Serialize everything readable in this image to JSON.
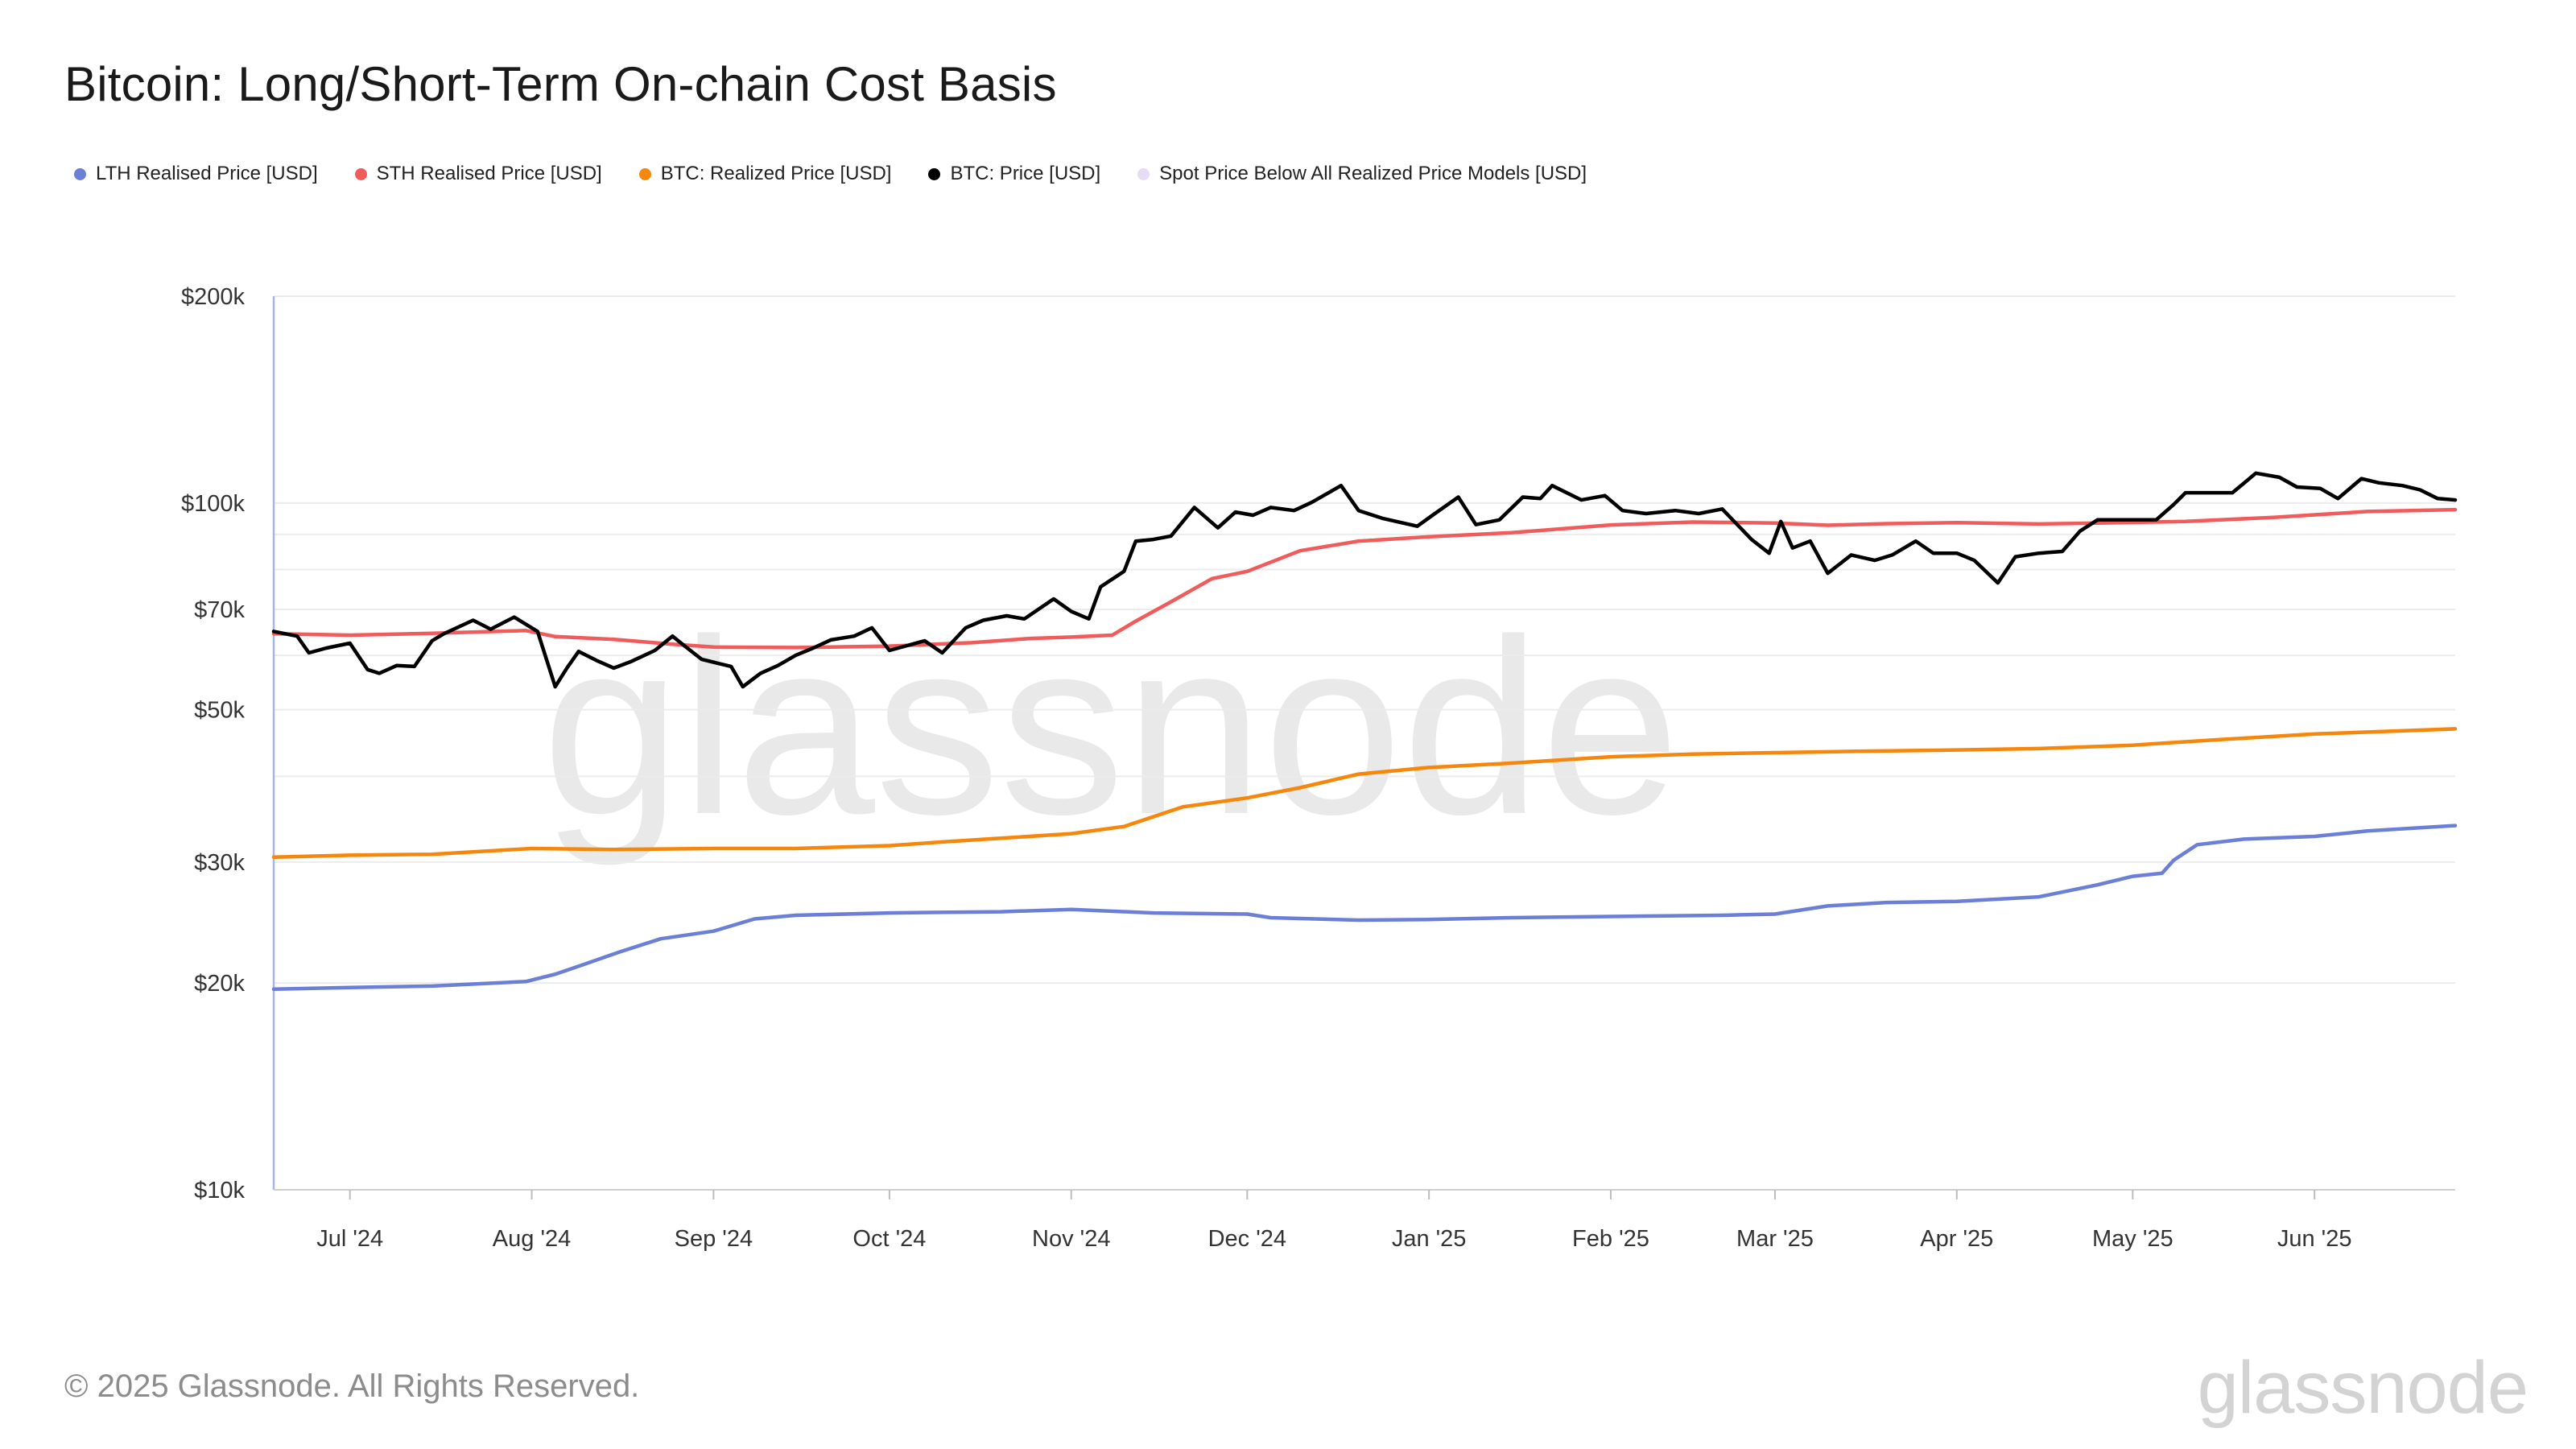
{
  "title": "Bitcoin: Long/Short-Term On-chain Cost Basis",
  "footer": "© 2025 Glassnode. All Rights Reserved.",
  "brand": "glassnode",
  "watermark": "glassnode",
  "legend": [
    {
      "label": "LTH Realised Price [USD]",
      "color": "#6b7fd7"
    },
    {
      "label": "STH Realised Price [USD]",
      "color": "#f05b5b"
    },
    {
      "label": "BTC: Realized Price [USD]",
      "color": "#f5870c"
    },
    {
      "label": "BTC: Price [USD]",
      "color": "#000000"
    },
    {
      "label": "Spot Price Below All Realized Price Models [USD]",
      "color": "#e6dcf5"
    }
  ],
  "chart_data": {
    "type": "line",
    "title": "Bitcoin: Long/Short-Term On-chain Cost Basis",
    "yscale": "log",
    "ylim": [
      10000,
      200000
    ],
    "xlim": [
      "2024-06-18",
      "2025-06-25"
    ],
    "y_ticks": [
      {
        "value": 10000,
        "label": "$10k"
      },
      {
        "value": 20000,
        "label": "$20k"
      },
      {
        "value": 30000,
        "label": "$30k"
      },
      {
        "value": 50000,
        "label": "$50k"
      },
      {
        "value": 70000,
        "label": "$70k"
      },
      {
        "value": 100000,
        "label": "$100k"
      },
      {
        "value": 200000,
        "label": "$200k"
      }
    ],
    "x_ticks": [
      {
        "date": "2024-07-01",
        "label": "Jul '24"
      },
      {
        "date": "2024-08-01",
        "label": "Aug '24"
      },
      {
        "date": "2024-09-01",
        "label": "Sep '24"
      },
      {
        "date": "2024-10-01",
        "label": "Oct '24"
      },
      {
        "date": "2024-11-01",
        "label": "Nov '24"
      },
      {
        "date": "2024-12-01",
        "label": "Dec '24"
      },
      {
        "date": "2025-01-01",
        "label": "Jan '25"
      },
      {
        "date": "2025-02-01",
        "label": "Feb '25"
      },
      {
        "date": "2025-03-01",
        "label": "Mar '25"
      },
      {
        "date": "2025-04-01",
        "label": "Apr '25"
      },
      {
        "date": "2025-05-01",
        "label": "May '25"
      },
      {
        "date": "2025-06-01",
        "label": "Jun '25"
      }
    ],
    "grid": true,
    "legend_position": "top-left",
    "series": [
      {
        "name": "LTH Realised Price [USD]",
        "color": "#6b7fd7",
        "points": [
          [
            "2024-06-18",
            19600
          ],
          [
            "2024-07-01",
            19700
          ],
          [
            "2024-07-15",
            19800
          ],
          [
            "2024-07-31",
            20100
          ],
          [
            "2024-08-05",
            20600
          ],
          [
            "2024-08-10",
            21300
          ],
          [
            "2024-08-16",
            22200
          ],
          [
            "2024-08-23",
            23200
          ],
          [
            "2024-09-01",
            23800
          ],
          [
            "2024-09-08",
            24800
          ],
          [
            "2024-09-15",
            25100
          ],
          [
            "2024-10-01",
            25300
          ],
          [
            "2024-10-20",
            25400
          ],
          [
            "2024-11-01",
            25600
          ],
          [
            "2024-11-15",
            25300
          ],
          [
            "2024-12-01",
            25200
          ],
          [
            "2024-12-05",
            24900
          ],
          [
            "2024-12-20",
            24700
          ],
          [
            "2025-01-01",
            24750
          ],
          [
            "2025-01-15",
            24900
          ],
          [
            "2025-02-01",
            25000
          ],
          [
            "2025-02-20",
            25100
          ],
          [
            "2025-03-01",
            25200
          ],
          [
            "2025-03-10",
            25900
          ],
          [
            "2025-03-20",
            26200
          ],
          [
            "2025-04-01",
            26300
          ],
          [
            "2025-04-15",
            26700
          ],
          [
            "2025-04-25",
            27800
          ],
          [
            "2025-05-01",
            28600
          ],
          [
            "2025-05-06",
            28900
          ],
          [
            "2025-05-08",
            30200
          ],
          [
            "2025-05-12",
            31800
          ],
          [
            "2025-05-20",
            32400
          ],
          [
            "2025-06-01",
            32700
          ],
          [
            "2025-06-10",
            33300
          ],
          [
            "2025-06-25",
            33900
          ]
        ]
      },
      {
        "name": "STH Realised Price [USD]",
        "color": "#f05b5b",
        "points": [
          [
            "2024-06-18",
            64500
          ],
          [
            "2024-07-01",
            64200
          ],
          [
            "2024-07-15",
            64600
          ],
          [
            "2024-07-31",
            65200
          ],
          [
            "2024-08-05",
            63900
          ],
          [
            "2024-08-15",
            63300
          ],
          [
            "2024-08-25",
            62300
          ],
          [
            "2024-09-01",
            61700
          ],
          [
            "2024-09-15",
            61600
          ],
          [
            "2024-10-01",
            61900
          ],
          [
            "2024-10-15",
            62600
          ],
          [
            "2024-10-25",
            63500
          ],
          [
            "2024-11-01",
            63800
          ],
          [
            "2024-11-08",
            64200
          ],
          [
            "2024-11-12",
            67300
          ],
          [
            "2024-11-18",
            71800
          ],
          [
            "2024-11-25",
            77600
          ],
          [
            "2024-12-01",
            79500
          ],
          [
            "2024-12-10",
            85200
          ],
          [
            "2024-12-20",
            88000
          ],
          [
            "2025-01-01",
            89300
          ],
          [
            "2025-01-15",
            90500
          ],
          [
            "2025-02-01",
            92900
          ],
          [
            "2025-02-15",
            93800
          ],
          [
            "2025-03-01",
            93500
          ],
          [
            "2025-03-10",
            92800
          ],
          [
            "2025-03-20",
            93300
          ],
          [
            "2025-04-01",
            93600
          ],
          [
            "2025-04-15",
            93200
          ],
          [
            "2025-04-25",
            93500
          ],
          [
            "2025-05-10",
            94000
          ],
          [
            "2025-05-25",
            95300
          ],
          [
            "2025-06-10",
            97200
          ],
          [
            "2025-06-25",
            97800
          ]
        ]
      },
      {
        "name": "BTC: Realized Price [USD]",
        "color": "#f5870c",
        "points": [
          [
            "2024-06-18",
            30500
          ],
          [
            "2024-07-01",
            30700
          ],
          [
            "2024-07-15",
            30800
          ],
          [
            "2024-08-01",
            31400
          ],
          [
            "2024-08-15",
            31300
          ],
          [
            "2024-09-01",
            31400
          ],
          [
            "2024-09-15",
            31400
          ],
          [
            "2024-10-01",
            31700
          ],
          [
            "2024-10-10",
            32100
          ],
          [
            "2024-10-20",
            32500
          ],
          [
            "2024-11-01",
            33000
          ],
          [
            "2024-11-10",
            33800
          ],
          [
            "2024-11-20",
            36100
          ],
          [
            "2024-12-01",
            37200
          ],
          [
            "2024-12-10",
            38500
          ],
          [
            "2024-12-20",
            40300
          ],
          [
            "2025-01-01",
            41200
          ],
          [
            "2025-01-15",
            41800
          ],
          [
            "2025-02-01",
            42700
          ],
          [
            "2025-02-15",
            43100
          ],
          [
            "2025-03-01",
            43300
          ],
          [
            "2025-03-15",
            43500
          ],
          [
            "2025-04-01",
            43700
          ],
          [
            "2025-04-15",
            43900
          ],
          [
            "2025-05-01",
            44400
          ],
          [
            "2025-05-15",
            45200
          ],
          [
            "2025-06-01",
            46100
          ],
          [
            "2025-06-25",
            46900
          ]
        ]
      },
      {
        "name": "BTC: Price [USD]",
        "color": "#000000",
        "points": [
          [
            "2024-06-18",
            65000
          ],
          [
            "2024-06-22",
            64000
          ],
          [
            "2024-06-24",
            60500
          ],
          [
            "2024-06-27",
            61500
          ],
          [
            "2024-07-01",
            62500
          ],
          [
            "2024-07-04",
            57200
          ],
          [
            "2024-07-06",
            56500
          ],
          [
            "2024-07-09",
            58000
          ],
          [
            "2024-07-12",
            57800
          ],
          [
            "2024-07-15",
            63000
          ],
          [
            "2024-07-17",
            64500
          ],
          [
            "2024-07-22",
            67500
          ],
          [
            "2024-07-25",
            65500
          ],
          [
            "2024-07-29",
            68200
          ],
          [
            "2024-08-02",
            65000
          ],
          [
            "2024-08-05",
            54000
          ],
          [
            "2024-08-07",
            57500
          ],
          [
            "2024-08-09",
            60800
          ],
          [
            "2024-08-12",
            59000
          ],
          [
            "2024-08-15",
            57500
          ],
          [
            "2024-08-18",
            58800
          ],
          [
            "2024-08-22",
            61000
          ],
          [
            "2024-08-25",
            64000
          ],
          [
            "2024-08-27",
            62000
          ],
          [
            "2024-08-30",
            59200
          ],
          [
            "2024-09-04",
            57800
          ],
          [
            "2024-09-06",
            54000
          ],
          [
            "2024-09-09",
            56500
          ],
          [
            "2024-09-12",
            58000
          ],
          [
            "2024-09-15",
            60000
          ],
          [
            "2024-09-18",
            61500
          ],
          [
            "2024-09-21",
            63200
          ],
          [
            "2024-09-25",
            64000
          ],
          [
            "2024-09-28",
            65800
          ],
          [
            "2024-10-01",
            61000
          ],
          [
            "2024-10-04",
            62000
          ],
          [
            "2024-10-07",
            63000
          ],
          [
            "2024-10-10",
            60500
          ],
          [
            "2024-10-14",
            65800
          ],
          [
            "2024-10-17",
            67500
          ],
          [
            "2024-10-21",
            68500
          ],
          [
            "2024-10-24",
            67800
          ],
          [
            "2024-10-29",
            72500
          ],
          [
            "2024-11-01",
            69500
          ],
          [
            "2024-11-04",
            67800
          ],
          [
            "2024-11-06",
            75500
          ],
          [
            "2024-11-10",
            79500
          ],
          [
            "2024-11-12",
            88000
          ],
          [
            "2024-11-15",
            88500
          ],
          [
            "2024-11-18",
            89500
          ],
          [
            "2024-11-22",
            98500
          ],
          [
            "2024-11-26",
            92000
          ],
          [
            "2024-11-29",
            97000
          ],
          [
            "2024-12-02",
            96000
          ],
          [
            "2024-12-05",
            98500
          ],
          [
            "2024-12-09",
            97500
          ],
          [
            "2024-12-12",
            100200
          ],
          [
            "2024-12-17",
            106000
          ],
          [
            "2024-12-20",
            97500
          ],
          [
            "2024-12-24",
            95000
          ],
          [
            "2024-12-30",
            92500
          ],
          [
            "2025-01-02",
            96500
          ],
          [
            "2025-01-06",
            102000
          ],
          [
            "2025-01-09",
            93000
          ],
          [
            "2025-01-13",
            94500
          ],
          [
            "2025-01-17",
            102000
          ],
          [
            "2025-01-20",
            101500
          ],
          [
            "2025-01-22",
            106000
          ],
          [
            "2025-01-27",
            101000
          ],
          [
            "2025-01-31",
            102500
          ],
          [
            "2025-02-03",
            97500
          ],
          [
            "2025-02-07",
            96500
          ],
          [
            "2025-02-12",
            97500
          ],
          [
            "2025-02-16",
            96500
          ],
          [
            "2025-02-20",
            98000
          ],
          [
            "2025-02-25",
            88500
          ],
          [
            "2025-02-28",
            84500
          ],
          [
            "2025-03-02",
            94000
          ],
          [
            "2025-03-04",
            86000
          ],
          [
            "2025-03-07",
            88000
          ],
          [
            "2025-03-10",
            79000
          ],
          [
            "2025-03-14",
            84000
          ],
          [
            "2025-03-18",
            82500
          ],
          [
            "2025-03-21",
            84000
          ],
          [
            "2025-03-25",
            88000
          ],
          [
            "2025-03-28",
            84500
          ],
          [
            "2025-04-01",
            84500
          ],
          [
            "2025-04-04",
            82500
          ],
          [
            "2025-04-08",
            76500
          ],
          [
            "2025-04-11",
            83500
          ],
          [
            "2025-04-15",
            84500
          ],
          [
            "2025-04-19",
            85000
          ],
          [
            "2025-04-22",
            91000
          ],
          [
            "2025-04-25",
            94500
          ],
          [
            "2025-04-30",
            94500
          ],
          [
            "2025-05-05",
            94500
          ],
          [
            "2025-05-08",
            99500
          ],
          [
            "2025-05-10",
            103500
          ],
          [
            "2025-05-14",
            103500
          ],
          [
            "2025-05-18",
            103500
          ],
          [
            "2025-05-22",
            110500
          ],
          [
            "2025-05-26",
            109000
          ],
          [
            "2025-05-29",
            105500
          ],
          [
            "2025-06-02",
            105000
          ],
          [
            "2025-06-05",
            101500
          ],
          [
            "2025-06-09",
            108500
          ],
          [
            "2025-06-12",
            107000
          ],
          [
            "2025-06-16",
            106000
          ],
          [
            "2025-06-19",
            104500
          ],
          [
            "2025-06-22",
            101500
          ],
          [
            "2025-06-25",
            101000
          ]
        ]
      }
    ]
  }
}
